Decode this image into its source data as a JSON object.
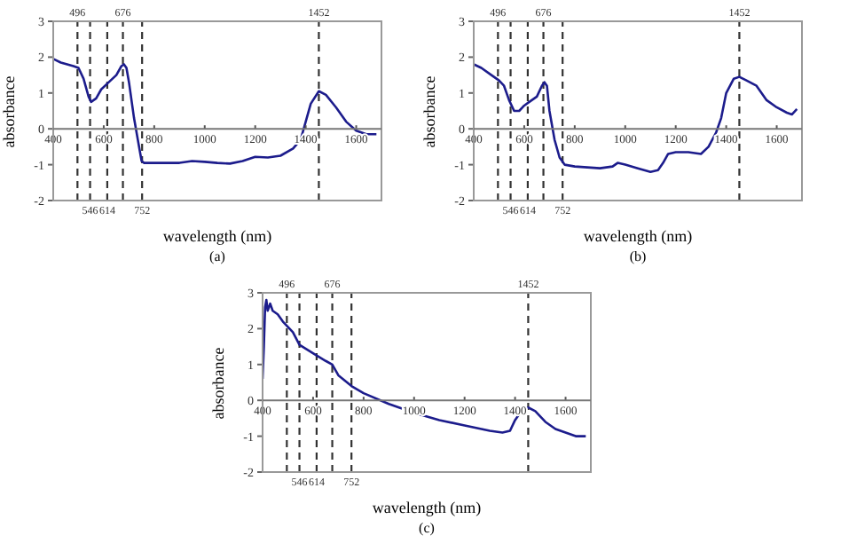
{
  "chart_data": [
    {
      "type": "line",
      "xlabel": "wavelength (nm)",
      "ylabel": "absorbance",
      "annotations": [
        "(a)"
      ],
      "color": "#1c1c8c",
      "xlim": [
        400,
        1700
      ],
      "ylim": [
        -2,
        3
      ],
      "xticks": [
        400,
        600,
        800,
        1000,
        1200,
        1400,
        1600
      ],
      "yticks": [
        -2,
        -1,
        0,
        1,
        2,
        3
      ],
      "x": [
        400,
        430,
        480,
        500,
        520,
        540,
        550,
        570,
        590,
        620,
        650,
        670,
        680,
        690,
        700,
        720,
        740,
        750,
        760,
        800,
        900,
        950,
        1000,
        1050,
        1100,
        1150,
        1200,
        1250,
        1300,
        1350,
        1380,
        1400,
        1420,
        1452,
        1480,
        1520,
        1560,
        1600,
        1640,
        1680
      ],
      "values": [
        1.95,
        1.85,
        1.75,
        1.7,
        1.4,
        0.9,
        0.75,
        0.85,
        1.1,
        1.3,
        1.5,
        1.75,
        1.8,
        1.7,
        1.3,
        0.3,
        -0.5,
        -0.9,
        -0.95,
        -0.95,
        -0.95,
        -0.9,
        -0.92,
        -0.95,
        -0.97,
        -0.9,
        -0.78,
        -0.8,
        -0.75,
        -0.55,
        -0.3,
        0.2,
        0.7,
        1.05,
        0.95,
        0.6,
        0.2,
        -0.05,
        -0.15,
        -0.15
      ],
      "ref_lines": [
        {
          "axis": "x",
          "value": 496,
          "label": "496",
          "color": "#333333",
          "line_style": "dashed"
        },
        {
          "axis": "x",
          "value": 676,
          "label": "676",
          "color": "#333333",
          "line_style": "dashed"
        },
        {
          "axis": "x",
          "value": 1452,
          "label": "1452",
          "color": "#333333",
          "line_style": "dashed"
        },
        {
          "axis": "x",
          "value": 546,
          "label": "546",
          "color": "#333333",
          "line_style": "dashed"
        },
        {
          "axis": "x",
          "value": 614,
          "label": "614",
          "color": "#333333",
          "line_style": "dashed"
        },
        {
          "axis": "x",
          "value": 752,
          "label": "752",
          "color": "#333333",
          "line_style": "dashed"
        }
      ]
    },
    {
      "type": "line",
      "xlabel": "wavelength (nm)",
      "ylabel": "absorbance",
      "annotations": [
        "(b)"
      ],
      "color": "#1c1c8c",
      "xlim": [
        400,
        1700
      ],
      "ylim": [
        -2,
        3
      ],
      "xticks": [
        400,
        600,
        800,
        1000,
        1200,
        1400,
        1600
      ],
      "yticks": [
        -2,
        -1,
        0,
        1,
        2,
        3
      ],
      "x": [
        400,
        430,
        470,
        500,
        520,
        540,
        560,
        580,
        600,
        620,
        650,
        670,
        680,
        690,
        700,
        720,
        740,
        760,
        800,
        900,
        950,
        970,
        1000,
        1050,
        1100,
        1130,
        1150,
        1170,
        1200,
        1250,
        1300,
        1330,
        1360,
        1380,
        1400,
        1430,
        1452,
        1480,
        1520,
        1560,
        1600,
        1640,
        1660,
        1680
      ],
      "values": [
        1.8,
        1.7,
        1.5,
        1.35,
        1.2,
        0.8,
        0.5,
        0.5,
        0.65,
        0.75,
        0.9,
        1.2,
        1.3,
        1.2,
        0.5,
        -0.3,
        -0.8,
        -1.0,
        -1.05,
        -1.1,
        -1.05,
        -0.95,
        -1.0,
        -1.1,
        -1.2,
        -1.15,
        -0.95,
        -0.7,
        -0.65,
        -0.65,
        -0.7,
        -0.5,
        -0.1,
        0.3,
        1.0,
        1.4,
        1.45,
        1.35,
        1.2,
        0.8,
        0.6,
        0.45,
        0.4,
        0.55
      ],
      "ref_lines": [
        {
          "axis": "x",
          "value": 496,
          "label": "496",
          "color": "#333333",
          "line_style": "dashed"
        },
        {
          "axis": "x",
          "value": 676,
          "label": "676",
          "color": "#333333",
          "line_style": "dashed"
        },
        {
          "axis": "x",
          "value": 1452,
          "label": "1452",
          "color": "#333333",
          "line_style": "dashed"
        },
        {
          "axis": "x",
          "value": 546,
          "label": "546",
          "color": "#333333",
          "line_style": "dashed"
        },
        {
          "axis": "x",
          "value": 614,
          "label": "614",
          "color": "#333333",
          "line_style": "dashed"
        },
        {
          "axis": "x",
          "value": 752,
          "label": "752",
          "color": "#333333",
          "line_style": "dashed"
        }
      ]
    },
    {
      "type": "line",
      "xlabel": "wavelength (nm)",
      "ylabel": "absorbance",
      "annotations": [
        "(c)"
      ],
      "color": "#1c1c8c",
      "xlim": [
        400,
        1700
      ],
      "ylim": [
        -2,
        3
      ],
      "xticks": [
        400,
        600,
        800,
        1000,
        1200,
        1400,
        1600
      ],
      "yticks": [
        -2,
        -1,
        0,
        1,
        2,
        3
      ],
      "x": [
        400,
        405,
        410,
        415,
        420,
        430,
        440,
        460,
        480,
        500,
        520,
        546,
        580,
        614,
        650,
        676,
        700,
        752,
        800,
        900,
        1000,
        1100,
        1200,
        1300,
        1350,
        1380,
        1400,
        1430,
        1452,
        1480,
        1520,
        1560,
        1600,
        1640,
        1680
      ],
      "values": [
        0.6,
        1.5,
        2.6,
        2.8,
        2.5,
        2.7,
        2.5,
        2.4,
        2.2,
        2.05,
        1.9,
        1.55,
        1.4,
        1.25,
        1.1,
        1.0,
        0.7,
        0.4,
        0.2,
        -0.1,
        -0.35,
        -0.55,
        -0.7,
        -0.85,
        -0.9,
        -0.85,
        -0.55,
        -0.25,
        -0.2,
        -0.3,
        -0.6,
        -0.8,
        -0.9,
        -1.0,
        -1.0
      ],
      "ref_lines": [
        {
          "axis": "x",
          "value": 496,
          "label": "496",
          "color": "#333333",
          "line_style": "dashed"
        },
        {
          "axis": "x",
          "value": 676,
          "label": "676",
          "color": "#333333",
          "line_style": "dashed"
        },
        {
          "axis": "x",
          "value": 1452,
          "label": "1452",
          "color": "#333333",
          "line_style": "dashed"
        },
        {
          "axis": "x",
          "value": 546,
          "label": "546",
          "color": "#333333",
          "line_style": "dashed"
        },
        {
          "axis": "x",
          "value": 614,
          "label": "614",
          "color": "#333333",
          "line_style": "dashed"
        },
        {
          "axis": "x",
          "value": 752,
          "label": "752",
          "color": "#333333",
          "line_style": "dashed"
        }
      ]
    }
  ]
}
